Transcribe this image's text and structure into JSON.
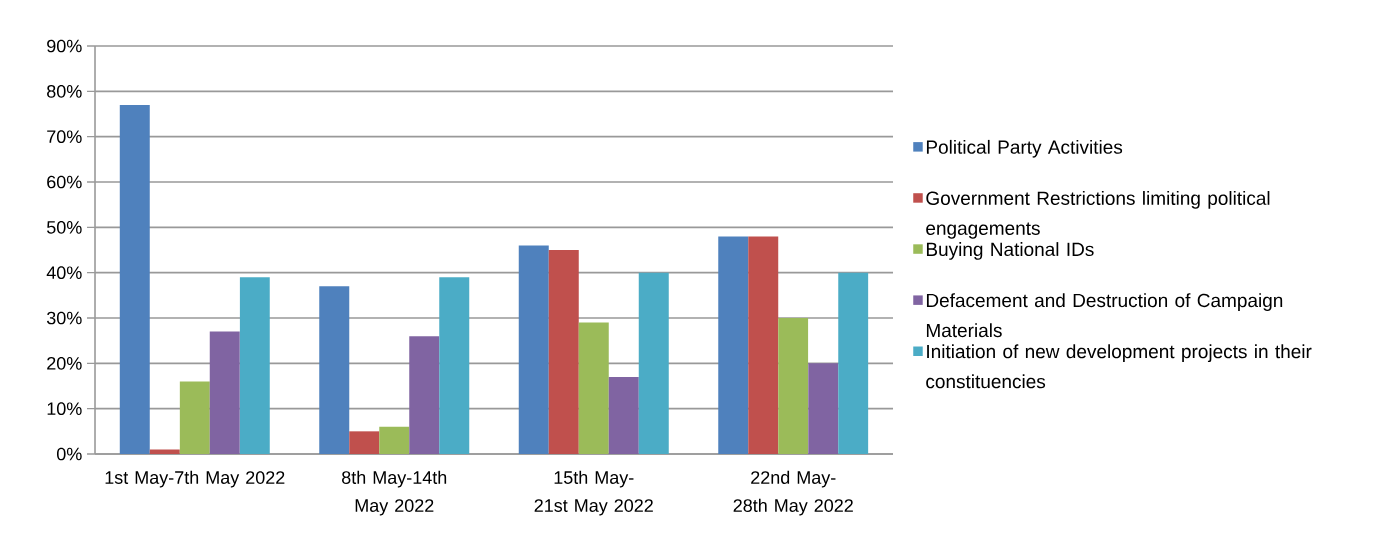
{
  "chart_data": {
    "type": "bar",
    "categories": [
      "1st May-7th May 2022",
      "8th May-14th May 2022",
      "15th May-21st May 2022",
      "22nd May-28th May 2022"
    ],
    "series": [
      {
        "name": "Political Party Activities",
        "color": "#4f81bd",
        "values": [
          77,
          37,
          46,
          48
        ]
      },
      {
        "name": "Government Restrictions limiting political engagements",
        "color": "#c0504d",
        "values": [
          1,
          5,
          45,
          48
        ]
      },
      {
        "name": "Buying National IDs",
        "color": "#9bbb59",
        "values": [
          16,
          6,
          29,
          30
        ]
      },
      {
        "name": "Defacement and Destruction of Campaign Materials",
        "color": "#8064a2",
        "values": [
          27,
          26,
          17,
          20
        ]
      },
      {
        "name": "Initiation of new development projects in their constituencies",
        "color": "#4bacc6",
        "values": [
          39,
          39,
          40,
          40
        ]
      }
    ],
    "ylim": [
      0,
      90
    ],
    "yticks": [
      {
        "value": 0,
        "label": "0%"
      },
      {
        "value": 10,
        "label": "10%"
      },
      {
        "value": 20,
        "label": "20%"
      },
      {
        "value": 30,
        "label": "30%"
      },
      {
        "value": 40,
        "label": "40%"
      },
      {
        "value": 50,
        "label": "50%"
      },
      {
        "value": 60,
        "label": "60%"
      },
      {
        "value": 70,
        "label": "70%"
      },
      {
        "value": 80,
        "label": "80%"
      },
      {
        "value": 90,
        "label": "90%"
      }
    ],
    "grid": "y",
    "legend": "right"
  }
}
